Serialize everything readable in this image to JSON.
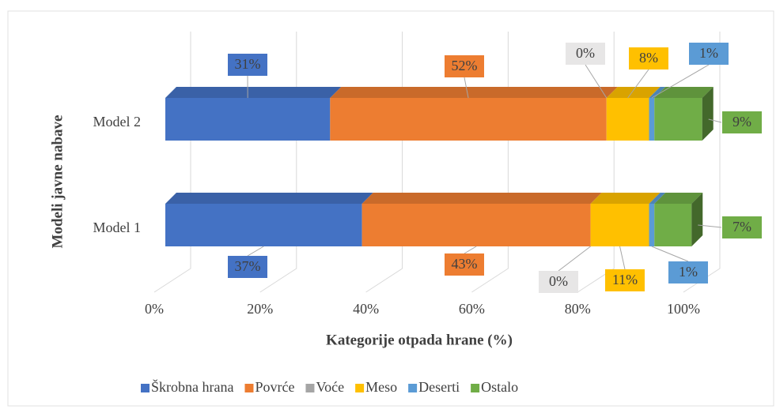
{
  "chart_data": {
    "type": "stacked-bar-horizontal",
    "categories": [
      "Model 1",
      "Model 2"
    ],
    "series": [
      {
        "name": "Škrobna hrana",
        "color": "#4472c4",
        "values": [
          37,
          31
        ],
        "value_labels": [
          "37%",
          "31%"
        ]
      },
      {
        "name": "Povrće",
        "color": "#ed7d31",
        "values": [
          43,
          52
        ],
        "value_labels": [
          "43%",
          "52%"
        ]
      },
      {
        "name": "Voće",
        "color": "#a5a5a5",
        "values": [
          0,
          0
        ],
        "value_labels": [
          "0%",
          "0%"
        ]
      },
      {
        "name": "Meso",
        "color": "#ffc000",
        "values": [
          11,
          8
        ],
        "value_labels": [
          "11%",
          "8%"
        ]
      },
      {
        "name": "Deserti",
        "color": "#5b9bd5",
        "values": [
          1,
          1
        ],
        "value_labels": [
          "1%",
          "1%"
        ]
      },
      {
        "name": "Ostalo",
        "color": "#70ad47",
        "values": [
          7,
          9
        ],
        "value_labels": [
          "7%",
          "9%"
        ]
      }
    ],
    "xlim": [
      0,
      100
    ],
    "xticks": [
      {
        "value": 0,
        "label": "0%"
      },
      {
        "value": 20,
        "label": "20%"
      },
      {
        "value": 40,
        "label": "40%"
      },
      {
        "value": 60,
        "label": "60%"
      },
      {
        "value": 80,
        "label": "80%"
      },
      {
        "value": 100,
        "label": "100%"
      }
    ],
    "x_label": "Kategorije otpada hrane (%)",
    "y_label": "Modeli javne nabave",
    "grid": true,
    "legend": "bottom"
  }
}
